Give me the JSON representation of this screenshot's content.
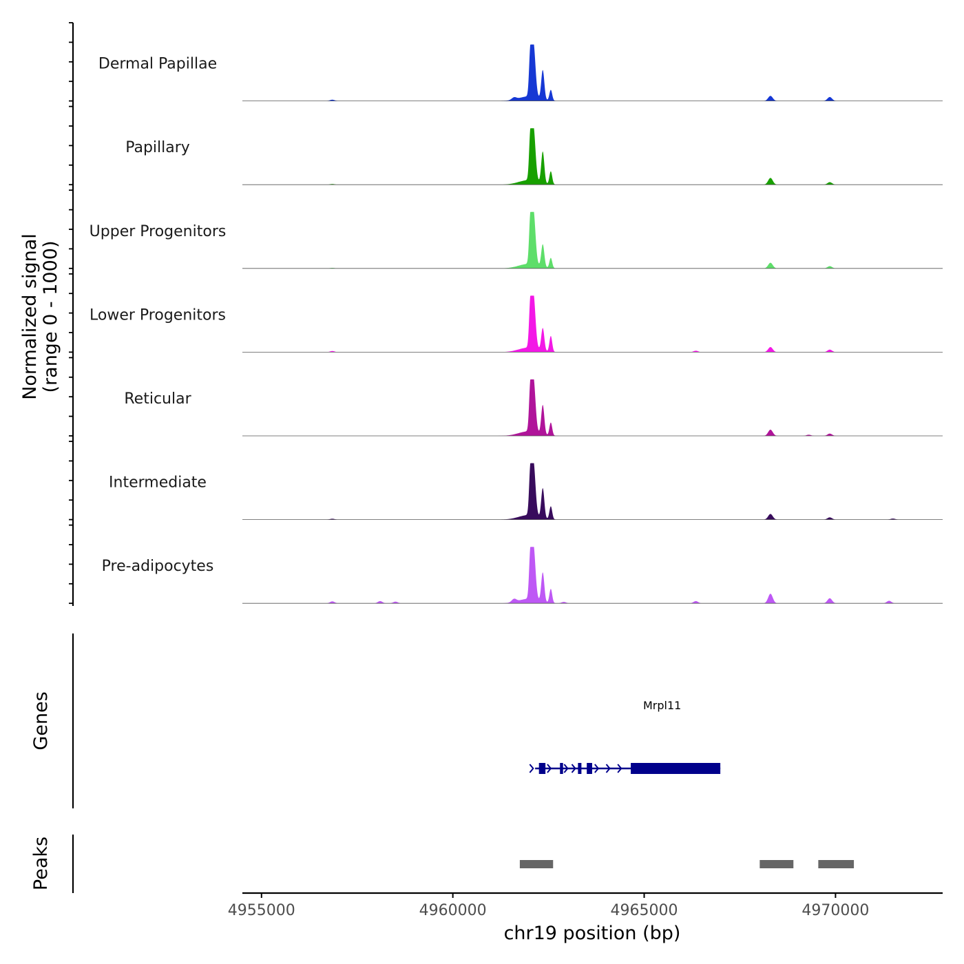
{
  "chart_data": {
    "type": "area",
    "title": "",
    "region": "chr19",
    "xlabel": "chr19 position (bp)",
    "ylabel_line1": "Normalized signal",
    "ylabel_line2": "(range 0 - 1000)",
    "xlim": [
      4954500,
      4972800
    ],
    "ylim": [
      0,
      1000
    ],
    "x_ticks": [
      4955000,
      4960000,
      4965000,
      4970000
    ],
    "x_tick_labels": [
      "4955000",
      "4960000",
      "4965000",
      "4970000"
    ],
    "tracks": [
      {
        "name": "Dermal Papillae",
        "color": "#1638d4",
        "peak_heights": [
          1000,
          520,
          190
        ],
        "minor": [
          [
            4968300,
            90
          ],
          [
            4969850,
            70
          ],
          [
            4956850,
            22
          ],
          [
            4961600,
            40
          ]
        ]
      },
      {
        "name": "Papillary",
        "color": "#18a000",
        "peak_heights": [
          1000,
          560,
          230
        ],
        "minor": [
          [
            4968300,
            120
          ],
          [
            4969850,
            45
          ],
          [
            4956850,
            12
          ]
        ]
      },
      {
        "name": "Upper Progenitors",
        "color": "#5ede6a",
        "peak_heights": [
          1000,
          400,
          180
        ],
        "minor": [
          [
            4968300,
            100
          ],
          [
            4969850,
            40
          ],
          [
            4956850,
            10
          ]
        ]
      },
      {
        "name": "Lower Progenitors",
        "color": "#f318e6",
        "peak_heights": [
          1000,
          400,
          280
        ],
        "minor": [
          [
            4968300,
            90
          ],
          [
            4969850,
            45
          ],
          [
            4956850,
            20
          ],
          [
            4966350,
            25
          ]
        ]
      },
      {
        "name": "Reticular",
        "color": "#b0149a",
        "peak_heights": [
          1000,
          520,
          230
        ],
        "minor": [
          [
            4968300,
            110
          ],
          [
            4969850,
            40
          ],
          [
            4969300,
            20
          ]
        ]
      },
      {
        "name": "Intermediate",
        "color": "#380c5c",
        "peak_heights": [
          1000,
          530,
          230
        ],
        "minor": [
          [
            4968300,
            100
          ],
          [
            4969850,
            40
          ],
          [
            4956850,
            15
          ],
          [
            4971500,
            18
          ]
        ]
      },
      {
        "name": "Pre-adipocytes",
        "color": "#be58f5",
        "peak_heights": [
          1000,
          520,
          250
        ],
        "minor": [
          [
            4968300,
            170
          ],
          [
            4969850,
            90
          ],
          [
            4956850,
            35
          ],
          [
            4958100,
            40
          ],
          [
            4958500,
            30
          ],
          [
            4966350,
            40
          ],
          [
            4971400,
            45
          ],
          [
            4961600,
            55
          ],
          [
            4962900,
            25
          ]
        ]
      }
    ],
    "peak_centers": [
      4962100,
      4962350,
      4962560
    ],
    "genes": [
      {
        "name": "Mrpl11",
        "strand": "+",
        "color": "#00008b",
        "start": 4962150,
        "end": 4966990,
        "exons": [
          [
            4962250,
            4962420
          ],
          [
            4962800,
            4962880
          ],
          [
            4963270,
            4963360
          ],
          [
            4963500,
            4963640
          ],
          [
            4964650,
            4966990
          ]
        ]
      }
    ],
    "peaks": [
      [
        4961750,
        4962620
      ],
      [
        4968020,
        4968900
      ],
      [
        4969550,
        4970480
      ]
    ],
    "peak_color": "#666666",
    "panel_titles": {
      "genes": "Genes",
      "peaks": "Peaks"
    }
  }
}
